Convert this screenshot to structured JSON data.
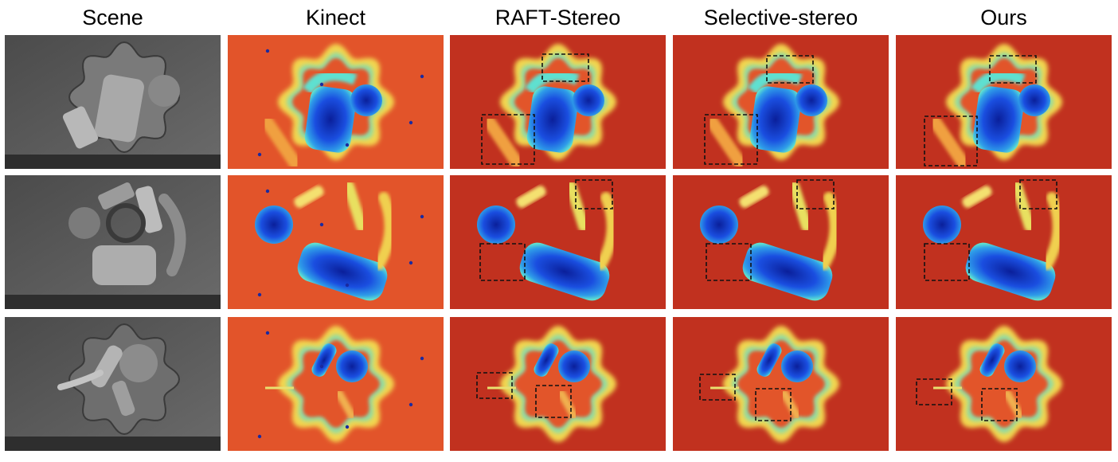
{
  "headers": {
    "scene": "Scene",
    "kinect": "Kinect",
    "raft": "RAFT-Stereo",
    "selective": "Selective-stereo",
    "ours": "Ours"
  },
  "colors": {
    "depth_far": "#c1311f",
    "depth_warm": "#e2542a",
    "ring_yellow": "#f2d64f",
    "ring_cyan": "#5fe0d0",
    "object_blue": "#1a4ee0",
    "object_deep": "#0a1f9a",
    "scene_gray": "#5a5a5a"
  }
}
